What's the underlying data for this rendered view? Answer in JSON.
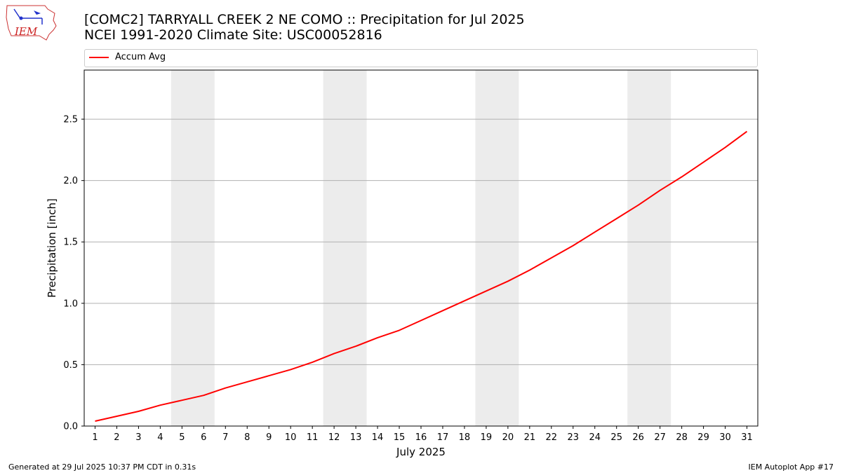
{
  "header": {
    "title_line1": "[COMC2] TARRYALL CREEK 2 NE COMO :: Precipitation for Jul 2025",
    "title_line2": "NCEI 1991-2020 Climate Site: USC00052816"
  },
  "logo": {
    "text": "IEM"
  },
  "legend": {
    "label": "Accum Avg"
  },
  "footer": {
    "left": "Generated at 29 Jul 2025 10:37 PM CDT in 0.31s",
    "right": "IEM Autoplot App #17"
  },
  "colors": {
    "line": "#ff0000",
    "weekend_band": "#ececec",
    "grid": "#b0b0b0"
  },
  "chart_data": {
    "type": "line",
    "xlabel": "July 2025",
    "ylabel": "Precipitation [inch]",
    "x": [
      1,
      2,
      3,
      4,
      5,
      6,
      7,
      8,
      9,
      10,
      11,
      12,
      13,
      14,
      15,
      16,
      17,
      18,
      19,
      20,
      21,
      22,
      23,
      24,
      25,
      26,
      27,
      28,
      29,
      30,
      31
    ],
    "series": [
      {
        "name": "Accum Avg",
        "values": [
          0.04,
          0.08,
          0.12,
          0.17,
          0.21,
          0.25,
          0.31,
          0.36,
          0.41,
          0.46,
          0.52,
          0.59,
          0.65,
          0.72,
          0.78,
          0.86,
          0.94,
          1.02,
          1.1,
          1.18,
          1.27,
          1.37,
          1.47,
          1.58,
          1.69,
          1.8,
          1.92,
          2.03,
          2.15,
          2.27,
          2.4
        ]
      }
    ],
    "yticks": [
      "0.0",
      "0.5",
      "1.0",
      "1.5",
      "2.0",
      "2.5"
    ],
    "xticks": [
      "1",
      "2",
      "3",
      "4",
      "5",
      "6",
      "7",
      "8",
      "9",
      "10",
      "11",
      "12",
      "13",
      "14",
      "15",
      "16",
      "17",
      "18",
      "19",
      "20",
      "21",
      "22",
      "23",
      "24",
      "25",
      "26",
      "27",
      "28",
      "29",
      "30",
      "31"
    ],
    "shaded_days": [
      [
        5,
        6
      ],
      [
        12,
        13
      ],
      [
        19,
        20
      ],
      [
        26,
        27
      ]
    ],
    "ylim": [
      0,
      2.9
    ],
    "xlim": [
      0.5,
      31.5
    ],
    "grid": "horizontal",
    "legend_position": "top"
  }
}
